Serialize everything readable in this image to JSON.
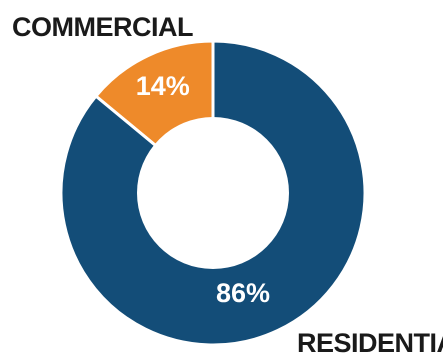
{
  "chart_data": {
    "type": "pie",
    "donut": true,
    "slices": [
      {
        "label": "COMMERCIAL",
        "value": 14,
        "value_label": "14%",
        "color": "#ee8a2a"
      },
      {
        "label": "RESIDENTIAL",
        "value": 86,
        "value_label": "86%",
        "color": "#134d78"
      }
    ],
    "slice_border_color": "#ffffff",
    "background": "#ffffff"
  }
}
